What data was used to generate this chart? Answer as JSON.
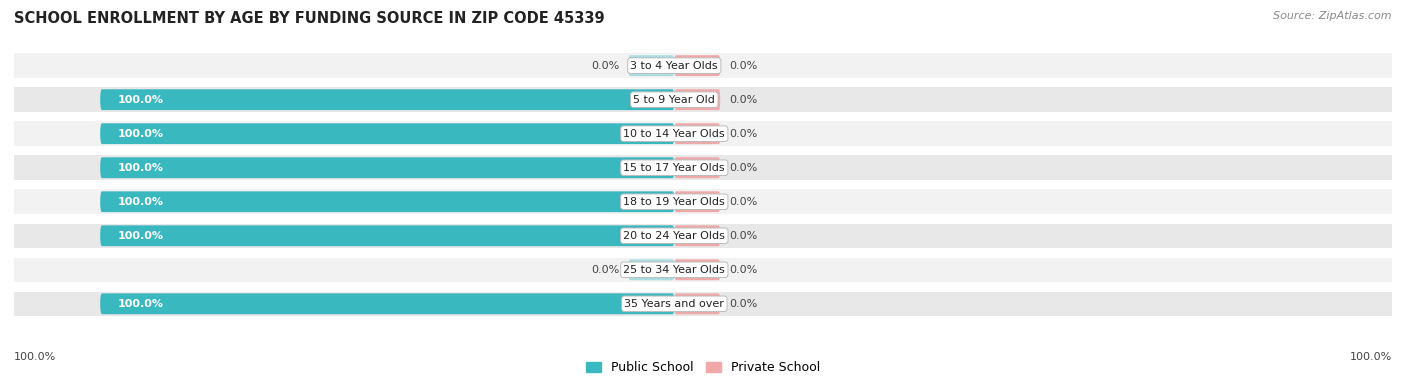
{
  "title": "SCHOOL ENROLLMENT BY AGE BY FUNDING SOURCE IN ZIP CODE 45339",
  "source": "Source: ZipAtlas.com",
  "categories": [
    "3 to 4 Year Olds",
    "5 to 9 Year Old",
    "10 to 14 Year Olds",
    "15 to 17 Year Olds",
    "18 to 19 Year Olds",
    "20 to 24 Year Olds",
    "25 to 34 Year Olds",
    "35 Years and over"
  ],
  "public_pct": [
    0.0,
    100.0,
    100.0,
    100.0,
    100.0,
    100.0,
    0.0,
    100.0
  ],
  "private_pct": [
    0.0,
    0.0,
    0.0,
    0.0,
    0.0,
    0.0,
    0.0,
    0.0
  ],
  "public_color": "#3ab8c0",
  "public_stub_color": "#a8dde2",
  "private_color": "#f0a8a8",
  "private_stub_color": "#f0a8a8",
  "row_bg_even": "#f2f2f2",
  "row_bg_odd": "#e8e8e8",
  "axis_label_left": "100.0%",
  "axis_label_right": "100.0%",
  "legend_public": "Public School",
  "legend_private": "Private School",
  "title_fontsize": 10.5,
  "label_fontsize": 8,
  "category_fontsize": 8,
  "source_fontsize": 8
}
